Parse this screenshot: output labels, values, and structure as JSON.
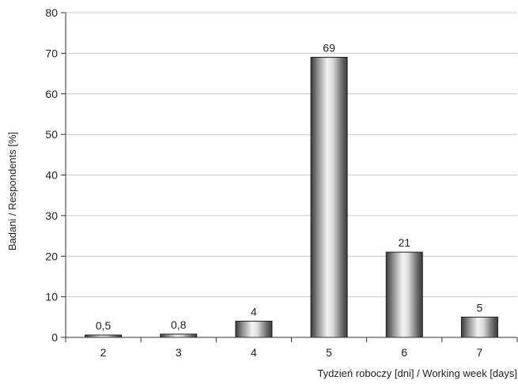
{
  "chart_data": {
    "type": "bar",
    "categories": [
      "2",
      "3",
      "4",
      "5",
      "6",
      "7"
    ],
    "values": [
      0.5,
      0.8,
      4,
      69,
      21,
      5
    ],
    "value_labels": [
      "0,5",
      "0,8",
      "4",
      "69",
      "21",
      "5"
    ],
    "title": "",
    "xlabel": "Tydzień roboczy [dni] / Working week [days]",
    "ylabel": "Badani / Respondents [%]",
    "ylim": [
      0,
      80
    ],
    "yticks": [
      0,
      10,
      20,
      30,
      40,
      50,
      60,
      70,
      80
    ],
    "grid": true,
    "legend": "none",
    "colors": {
      "bar_dark": "#3a3a3a",
      "bar_light": "#f2f2f2",
      "grid": "#c8c8c8",
      "axis": "#333333"
    }
  }
}
